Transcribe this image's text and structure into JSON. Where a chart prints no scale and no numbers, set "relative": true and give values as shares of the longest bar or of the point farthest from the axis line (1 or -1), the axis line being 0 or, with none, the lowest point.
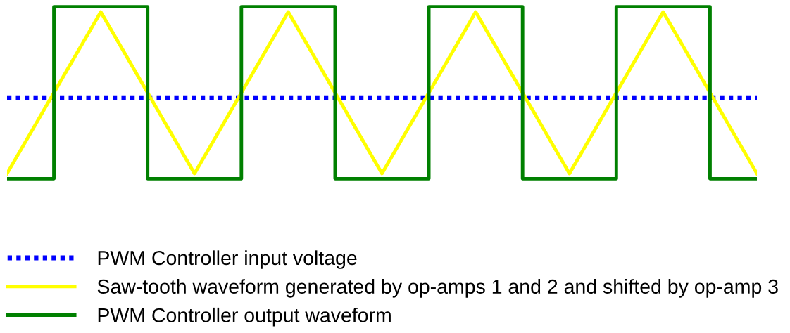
{
  "chart_data": {
    "type": "line",
    "relative": true,
    "legend": "bottom left",
    "categories": [
      null,
      null,
      null,
      null,
      null,
      null,
      null,
      null,
      null,
      null,
      null,
      null,
      null,
      null,
      null,
      null,
      null
    ],
    "series": [
      {
        "name": "PWM Controller input voltage",
        "color": "#0000ff",
        "line_style": "dotted",
        "values": [
          0.47,
          0.47,
          0.47,
          0.47,
          0.47,
          0.47,
          0.47,
          0.47,
          0.47,
          0.47,
          0.47,
          0.47,
          0.47,
          0.47,
          0.47,
          0.47,
          0.47
        ]
      },
      {
        "name": "Saw-tooth waveform generated by op-amps 1 and 2 and shifted by op-amp 3",
        "color": "#ffff00",
        "line_style": "solid",
        "values": [
          0.03,
          0.5,
          0.97,
          0.5,
          0.03,
          0.5,
          0.97,
          0.5,
          0.03,
          0.5,
          0.97,
          0.5,
          0.03,
          0.5,
          0.97,
          0.5,
          0.03
        ]
      },
      {
        "name": "PWM Controller output waveform",
        "color": "#008000",
        "type": "step",
        "line_style": "solid",
        "values": [
          0,
          1,
          1,
          0,
          0,
          1,
          1,
          0,
          0,
          1,
          1,
          0,
          0,
          1,
          1,
          0,
          0
        ]
      }
    ]
  }
}
